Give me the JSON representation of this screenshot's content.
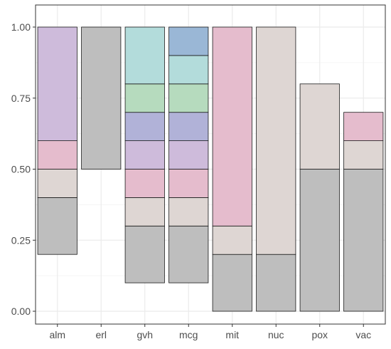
{
  "chart_data": {
    "type": "bar",
    "title": "",
    "xlabel": "",
    "ylabel": "",
    "categories": [
      "alm",
      "erl",
      "gvh",
      "mcg",
      "mit",
      "nuc",
      "pox",
      "vac"
    ],
    "ylim": [
      0,
      1.05
    ],
    "yticks": [
      0.0,
      0.25,
      0.5,
      0.75,
      1.0
    ],
    "ytick_labels": [
      "0.00",
      "0.25",
      "0.50",
      "0.75",
      "1.00"
    ],
    "grid": true,
    "legend": "none",
    "bar_segments": [
      {
        "category": "alm",
        "y0": 0.2,
        "y1": 0.4,
        "color": "#bebebe"
      },
      {
        "category": "alm",
        "y0": 0.4,
        "y1": 0.5,
        "color": "#ded6d3"
      },
      {
        "category": "alm",
        "y0": 0.5,
        "y1": 0.6,
        "color": "#e5bccd"
      },
      {
        "category": "alm",
        "y0": 0.6,
        "y1": 1.0,
        "color": "#cebbdb"
      },
      {
        "category": "erl",
        "y0": 0.5,
        "y1": 1.0,
        "color": "#bebebe"
      },
      {
        "category": "gvh",
        "y0": 0.1,
        "y1": 0.3,
        "color": "#bebebe"
      },
      {
        "category": "gvh",
        "y0": 0.3,
        "y1": 0.4,
        "color": "#ded6d3"
      },
      {
        "category": "gvh",
        "y0": 0.4,
        "y1": 0.5,
        "color": "#e5bccd"
      },
      {
        "category": "gvh",
        "y0": 0.5,
        "y1": 0.6,
        "color": "#cebbdb"
      },
      {
        "category": "gvh",
        "y0": 0.6,
        "y1": 0.7,
        "color": "#b1b2d8"
      },
      {
        "category": "gvh",
        "y0": 0.7,
        "y1": 0.8,
        "color": "#b6dbbe"
      },
      {
        "category": "gvh",
        "y0": 0.8,
        "y1": 1.0,
        "color": "#b3dcdb"
      },
      {
        "category": "mcg",
        "y0": 0.1,
        "y1": 0.3,
        "color": "#bebebe"
      },
      {
        "category": "mcg",
        "y0": 0.3,
        "y1": 0.4,
        "color": "#ded6d3"
      },
      {
        "category": "mcg",
        "y0": 0.4,
        "y1": 0.5,
        "color": "#e5bccd"
      },
      {
        "category": "mcg",
        "y0": 0.5,
        "y1": 0.6,
        "color": "#cebbdb"
      },
      {
        "category": "mcg",
        "y0": 0.6,
        "y1": 0.7,
        "color": "#b1b2d8"
      },
      {
        "category": "mcg",
        "y0": 0.7,
        "y1": 0.8,
        "color": "#b6dbbe"
      },
      {
        "category": "mcg",
        "y0": 0.8,
        "y1": 0.9,
        "color": "#b3dcdb"
      },
      {
        "category": "mcg",
        "y0": 0.9,
        "y1": 1.0,
        "color": "#9ab7d6"
      },
      {
        "category": "mit",
        "y0": 0.0,
        "y1": 0.2,
        "color": "#bebebe"
      },
      {
        "category": "mit",
        "y0": 0.2,
        "y1": 0.3,
        "color": "#ded6d3"
      },
      {
        "category": "mit",
        "y0": 0.3,
        "y1": 1.0,
        "color": "#e5bccd"
      },
      {
        "category": "nuc",
        "y0": 0.0,
        "y1": 0.2,
        "color": "#bebebe"
      },
      {
        "category": "nuc",
        "y0": 0.2,
        "y1": 1.0,
        "color": "#ded6d3"
      },
      {
        "category": "pox",
        "y0": 0.0,
        "y1": 0.5,
        "color": "#bebebe"
      },
      {
        "category": "pox",
        "y0": 0.5,
        "y1": 0.8,
        "color": "#ded6d3"
      },
      {
        "category": "vac",
        "y0": 0.0,
        "y1": 0.5,
        "color": "#bebebe"
      },
      {
        "category": "vac",
        "y0": 0.5,
        "y1": 0.6,
        "color": "#ded6d3"
      },
      {
        "category": "vac",
        "y0": 0.6,
        "y1": 0.7,
        "color": "#e5bccd"
      }
    ],
    "colors": {
      "panel_border": "#333333",
      "grid_major": "#ebebeb",
      "grid_minor": "#f5f5f5",
      "bar_outline": "#1a1a1a",
      "tick_mark": "#333333"
    }
  }
}
